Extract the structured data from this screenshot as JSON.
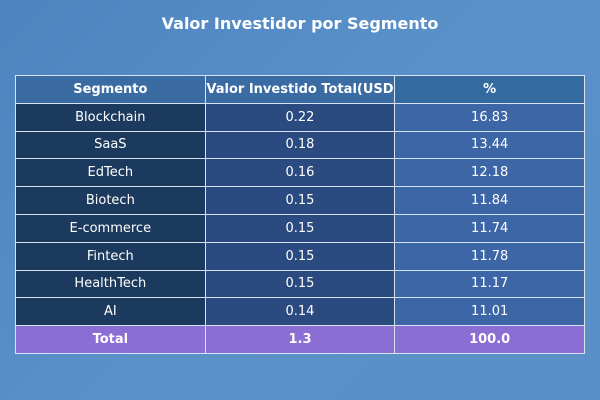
{
  "chart_data": {
    "type": "table",
    "title": "Valor Investidor por Segmento",
    "columns": [
      "Segmento",
      "Valor Investido Total(USD",
      "%"
    ],
    "rows": [
      [
        "Blockchain",
        "0.22",
        "16.83"
      ],
      [
        "SaaS",
        "0.18",
        "13.44"
      ],
      [
        "EdTech",
        "0.16",
        "12.18"
      ],
      [
        "Biotech",
        "0.15",
        "11.84"
      ],
      [
        "E-commerce",
        "0.15",
        "11.74"
      ],
      [
        "Fintech",
        "0.15",
        "11.78"
      ],
      [
        "HealthTech",
        "0.15",
        "11.17"
      ],
      [
        "AI",
        "0.14",
        "11.01"
      ]
    ],
    "total": [
      "Total",
      "1.3",
      "100.0"
    ]
  }
}
